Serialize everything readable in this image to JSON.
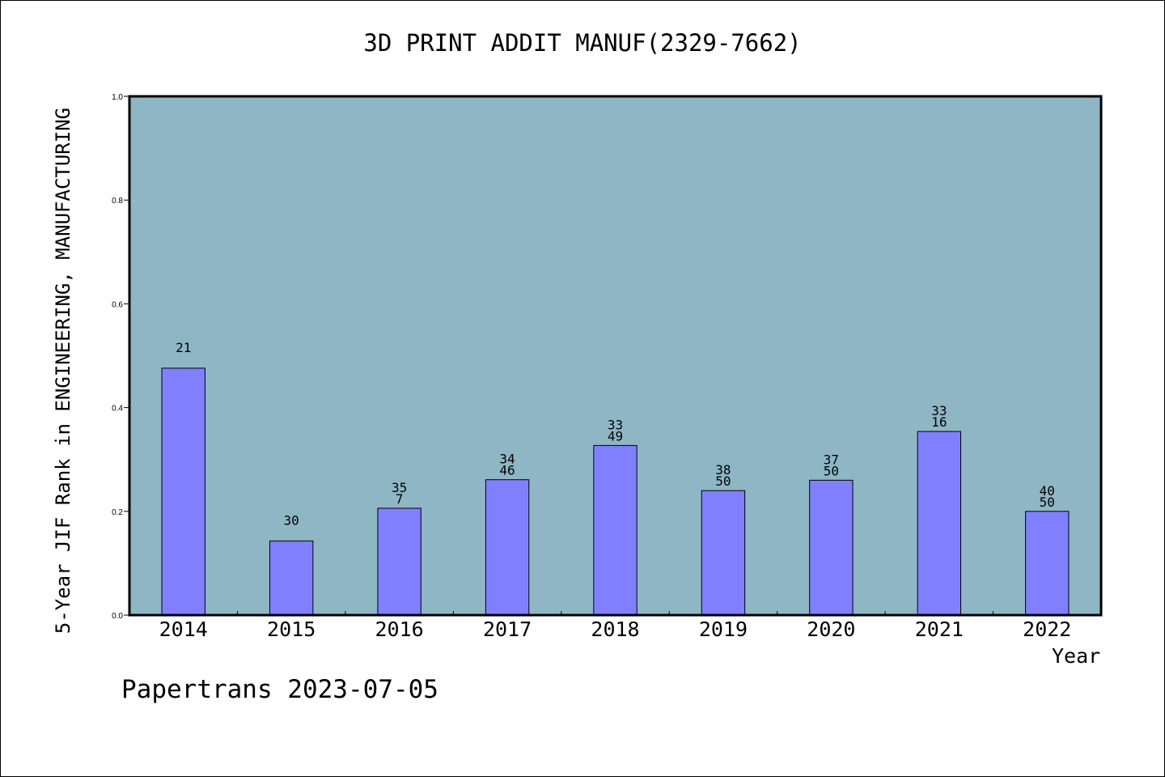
{
  "chart_data": {
    "type": "bar",
    "title": "3D PRINT ADDIT MANUF(2329-7662)",
    "xlabel": "Year",
    "ylabel": "5-Year JIF Rank in ENGINEERING, MANUFACTURING",
    "ylim": [
      0.0,
      1.0
    ],
    "yticks": [
      "0.0",
      "0.2",
      "0.4",
      "0.6",
      "0.8",
      "1.0"
    ],
    "categories": [
      "2014",
      "2015",
      "2016",
      "2017",
      "2018",
      "2019",
      "2020",
      "2021",
      "2022"
    ],
    "values": [
      0.476,
      0.143,
      0.206,
      0.261,
      0.327,
      0.24,
      0.26,
      0.354,
      0.2
    ],
    "labels": [
      [
        "21"
      ],
      [
        "30"
      ],
      [
        "35",
        "7"
      ],
      [
        "34",
        "46"
      ],
      [
        "33",
        "49"
      ],
      [
        "38",
        "50"
      ],
      [
        "37",
        "50"
      ],
      [
        "33",
        "16"
      ],
      [
        "40",
        "50"
      ]
    ],
    "grid": false,
    "plot_background": "#8fb6c5",
    "bar_color": "#8080ff"
  },
  "footer": "Papertrans 2023-07-05"
}
